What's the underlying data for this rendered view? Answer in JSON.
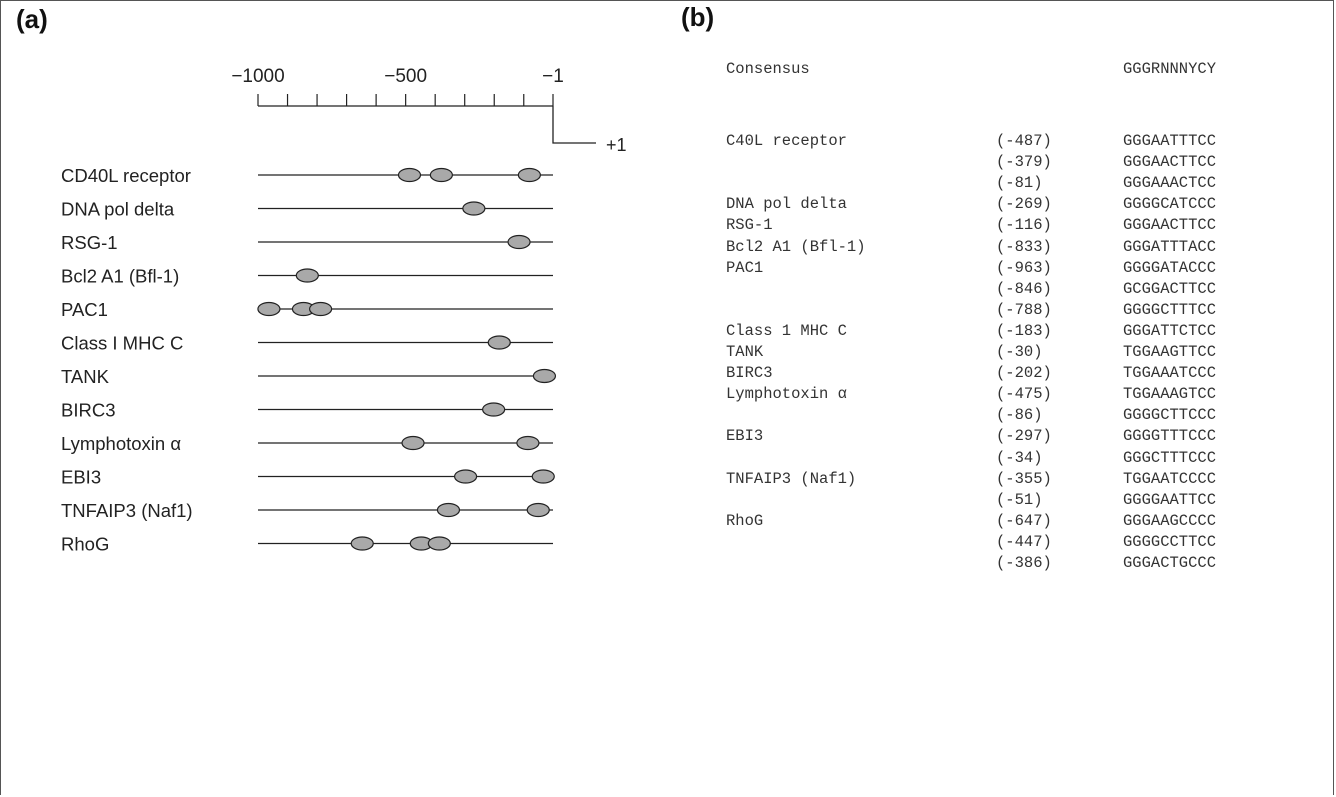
{
  "panel_a": {
    "label": "(a)",
    "axis": {
      "tick_labels": [
        "−1000",
        "−500",
        "−1"
      ],
      "start_label": "+1",
      "min": -1000,
      "max": -1,
      "minor_step": 100
    },
    "genes": [
      {
        "name": "CD40L receptor",
        "sites": [
          -487,
          -379,
          -81
        ]
      },
      {
        "name": "DNA pol delta",
        "sites": [
          -269
        ]
      },
      {
        "name": "RSG-1",
        "sites": [
          -116
        ]
      },
      {
        "name": "Bcl2 A1 (Bfl-1)",
        "sites": [
          -833
        ]
      },
      {
        "name": "PAC1",
        "sites": [
          -963,
          -846,
          -788
        ]
      },
      {
        "name": "Class I MHC C",
        "sites": [
          -183
        ]
      },
      {
        "name": "TANK",
        "sites": [
          -30
        ]
      },
      {
        "name": "BIRC3",
        "sites": [
          -202
        ]
      },
      {
        "name": "Lymphotoxin α",
        "sites": [
          -475,
          -86
        ]
      },
      {
        "name": "EBI3",
        "sites": [
          -297,
          -34
        ]
      },
      {
        "name": "TNFAIP3 (Naf1)",
        "sites": [
          -355,
          -51
        ]
      },
      {
        "name": "RhoG",
        "sites": [
          -647,
          -447,
          -386
        ]
      }
    ],
    "colors": {
      "site_fill": "#a9a9a9",
      "line": "#222222"
    }
  },
  "panel_b": {
    "label": "(b)",
    "consensus": {
      "name": "Consensus",
      "sequence": "GGGRNNNYCY"
    },
    "rows": [
      {
        "gene": "C40L receptor",
        "position": "(-487)",
        "sequence": "GGGAATTTCC"
      },
      {
        "gene": "",
        "position": "(-379)",
        "sequence": "GGGAACTTCC"
      },
      {
        "gene": "",
        "position": "(-81)",
        "sequence": "GGGAAACTCC"
      },
      {
        "gene": "DNA pol delta",
        "position": "(-269)",
        "sequence": "GGGGCATCCC"
      },
      {
        "gene": "RSG-1",
        "position": "(-116)",
        "sequence": "GGGAACTTCC"
      },
      {
        "gene": "Bcl2 A1 (Bfl-1)",
        "position": "(-833)",
        "sequence": "GGGATTTACC"
      },
      {
        "gene": "PAC1",
        "position": "(-963)",
        "sequence": "GGGGATACCC"
      },
      {
        "gene": "",
        "position": "(-846)",
        "sequence": "GCGGACTTCC"
      },
      {
        "gene": "",
        "position": "(-788)",
        "sequence": "GGGGCTTTCC"
      },
      {
        "gene": "Class 1 MHC C",
        "position": "(-183)",
        "sequence": "GGGATTCTCC"
      },
      {
        "gene": "TANK",
        "position": "(-30)",
        "sequence": "TGGAAGTTCC"
      },
      {
        "gene": "BIRC3",
        "position": "(-202)",
        "sequence": "TGGAAATCCC"
      },
      {
        "gene": "Lymphotoxin α",
        "position": "(-475)",
        "sequence": "TGGAAAGTCC"
      },
      {
        "gene": "",
        "position": "(-86)",
        "sequence": "GGGGCTTCCC"
      },
      {
        "gene": "EBI3",
        "position": "(-297)",
        "sequence": "GGGGTTTCCC"
      },
      {
        "gene": "",
        "position": "(-34)",
        "sequence": "GGGCTTTCCC"
      },
      {
        "gene": "TNFAIP3 (Naf1)",
        "position": "(-355)",
        "sequence": "TGGAATCCCC"
      },
      {
        "gene": "",
        "position": "(-51)",
        "sequence": "GGGGAATTCC"
      },
      {
        "gene": "RhoG",
        "position": "(-647)",
        "sequence": "GGGAAGCCCC"
      },
      {
        "gene": "",
        "position": "(-447)",
        "sequence": "GGGGCCTTCC"
      },
      {
        "gene": "",
        "position": "(-386)",
        "sequence": "GGGACTGCCC"
      }
    ]
  }
}
